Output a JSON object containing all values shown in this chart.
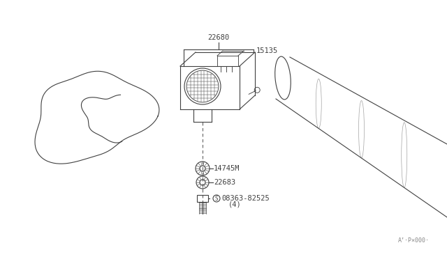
{
  "bg_color": "#ffffff",
  "line_color": "#404040",
  "label_22680": "22680",
  "label_15135": "15135",
  "label_14745M": "14745M",
  "label_22683": "22683",
  "label_bolt": "08363-82525",
  "label_bolt_qty": "(4)",
  "label_s": "S",
  "watermark": "A’·P×000·",
  "title_fontsize": 8,
  "fig_width": 6.4,
  "fig_height": 3.72,
  "dpi": 100
}
